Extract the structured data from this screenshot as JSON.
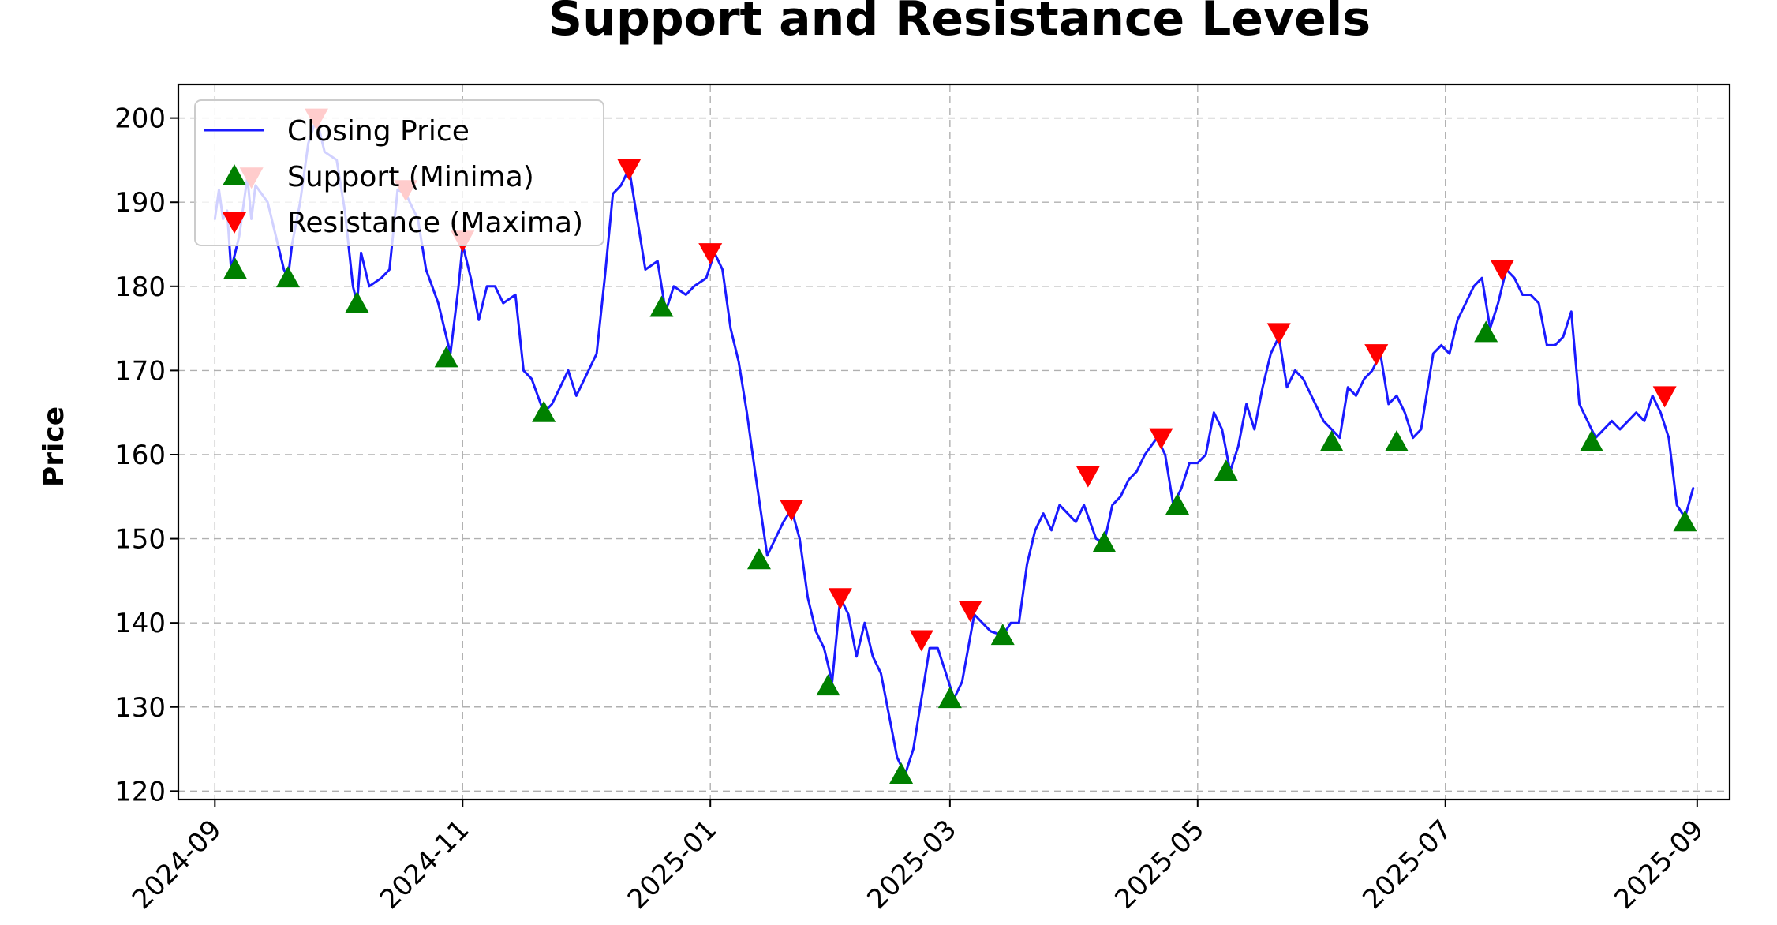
{
  "chart_data": {
    "type": "line",
    "title": "Support and Resistance Levels",
    "xlabel": "",
    "ylabel": "Price",
    "x_ticks": [
      "2024-09",
      "2024-11",
      "2025-01",
      "2025-03",
      "2025-05",
      "2025-07",
      "2025-09"
    ],
    "y_ticks": [
      120,
      130,
      140,
      150,
      160,
      170,
      180,
      190,
      200
    ],
    "xlim": [
      "2024-08-23",
      "2025-09-09"
    ],
    "ylim": [
      119,
      204
    ],
    "grid": true,
    "legend_position": "upper left",
    "colors": {
      "line": "#1a1aff",
      "support": "#008000",
      "resistance": "#ff0000"
    },
    "series": [
      {
        "name": "Closing Price",
        "kind": "line",
        "points": [
          [
            "2024-09-01",
            188
          ],
          [
            "2024-09-02",
            191.5
          ],
          [
            "2024-09-03",
            188
          ],
          [
            "2024-09-04",
            189
          ],
          [
            "2024-09-05",
            182
          ],
          [
            "2024-09-07",
            186
          ],
          [
            "2024-09-09",
            193
          ],
          [
            "2024-09-10",
            188
          ],
          [
            "2024-09-11",
            192
          ],
          [
            "2024-09-14",
            190
          ],
          [
            "2024-09-18",
            182
          ],
          [
            "2024-09-19",
            181
          ],
          [
            "2024-09-20",
            185
          ],
          [
            "2024-09-22",
            190
          ],
          [
            "2024-09-24",
            197
          ],
          [
            "2024-09-26",
            200
          ],
          [
            "2024-09-28",
            196
          ],
          [
            "2024-10-01",
            195
          ],
          [
            "2024-10-03",
            189
          ],
          [
            "2024-10-05",
            180
          ],
          [
            "2024-10-06",
            178
          ],
          [
            "2024-10-07",
            184
          ],
          [
            "2024-10-09",
            180
          ],
          [
            "2024-10-12",
            181
          ],
          [
            "2024-10-14",
            182
          ],
          [
            "2024-10-16",
            191.5
          ],
          [
            "2024-10-18",
            191
          ],
          [
            "2024-10-21",
            188
          ],
          [
            "2024-10-23",
            182
          ],
          [
            "2024-10-26",
            178
          ],
          [
            "2024-10-29",
            172
          ],
          [
            "2024-10-31",
            180
          ],
          [
            "2024-11-01",
            185
          ],
          [
            "2024-11-03",
            181
          ],
          [
            "2024-11-05",
            176
          ],
          [
            "2024-11-07",
            180
          ],
          [
            "2024-11-09",
            180
          ],
          [
            "2024-11-11",
            178
          ],
          [
            "2024-11-14",
            179
          ],
          [
            "2024-11-16",
            170
          ],
          [
            "2024-11-18",
            169
          ],
          [
            "2024-11-21",
            165
          ],
          [
            "2024-11-23",
            166
          ],
          [
            "2024-11-25",
            168
          ],
          [
            "2024-11-27",
            170
          ],
          [
            "2024-11-29",
            167
          ],
          [
            "2024-12-01",
            169
          ],
          [
            "2024-12-04",
            172
          ],
          [
            "2024-12-06",
            181
          ],
          [
            "2024-12-08",
            191
          ],
          [
            "2024-12-10",
            192
          ],
          [
            "2024-12-12",
            194
          ],
          [
            "2024-12-14",
            188
          ],
          [
            "2024-12-16",
            182
          ],
          [
            "2024-12-19",
            183
          ],
          [
            "2024-12-21",
            177
          ],
          [
            "2024-12-23",
            180
          ],
          [
            "2024-12-26",
            179
          ],
          [
            "2024-12-28",
            180
          ],
          [
            "2024-12-31",
            181
          ],
          [
            "2025-01-02",
            184
          ],
          [
            "2025-01-04",
            182
          ],
          [
            "2025-01-06",
            175
          ],
          [
            "2025-01-08",
            171
          ],
          [
            "2025-01-10",
            165
          ],
          [
            "2025-01-12",
            158
          ],
          [
            "2025-01-15",
            148
          ],
          [
            "2025-01-17",
            150
          ],
          [
            "2025-01-19",
            152
          ],
          [
            "2025-01-21",
            153.5
          ],
          [
            "2025-01-23",
            150
          ],
          [
            "2025-01-25",
            143
          ],
          [
            "2025-01-27",
            139
          ],
          [
            "2025-01-29",
            137
          ],
          [
            "2025-01-31",
            133
          ],
          [
            "2025-02-02",
            143
          ],
          [
            "2025-02-04",
            141
          ],
          [
            "2025-02-06",
            136
          ],
          [
            "2025-02-08",
            140
          ],
          [
            "2025-02-10",
            136
          ],
          [
            "2025-02-12",
            134
          ],
          [
            "2025-02-14",
            129
          ],
          [
            "2025-02-16",
            124
          ],
          [
            "2025-02-18",
            122
          ],
          [
            "2025-02-20",
            125
          ],
          [
            "2025-02-22",
            131
          ],
          [
            "2025-02-24",
            137
          ],
          [
            "2025-02-26",
            137
          ],
          [
            "2025-02-28",
            134
          ],
          [
            "2025-03-02",
            131
          ],
          [
            "2025-03-04",
            133
          ],
          [
            "2025-03-07",
            141
          ],
          [
            "2025-03-09",
            140
          ],
          [
            "2025-03-11",
            139
          ],
          [
            "2025-03-14",
            138.5
          ],
          [
            "2025-03-16",
            140
          ],
          [
            "2025-03-18",
            140
          ],
          [
            "2025-03-20",
            147
          ],
          [
            "2025-03-22",
            151
          ],
          [
            "2025-03-24",
            153
          ],
          [
            "2025-03-26",
            151
          ],
          [
            "2025-03-28",
            154
          ],
          [
            "2025-03-30",
            153
          ],
          [
            "2025-04-01",
            152
          ],
          [
            "2025-04-03",
            154
          ],
          [
            "2025-04-06",
            150
          ],
          [
            "2025-04-08",
            149.5
          ],
          [
            "2025-04-10",
            154
          ],
          [
            "2025-04-12",
            155
          ],
          [
            "2025-04-14",
            157
          ],
          [
            "2025-04-16",
            158
          ],
          [
            "2025-04-18",
            160
          ],
          [
            "2025-04-21",
            162
          ],
          [
            "2025-04-23",
            160
          ],
          [
            "2025-04-25",
            154
          ],
          [
            "2025-04-27",
            156
          ],
          [
            "2025-04-29",
            159
          ],
          [
            "2025-05-01",
            159
          ],
          [
            "2025-05-03",
            160
          ],
          [
            "2025-05-05",
            165
          ],
          [
            "2025-05-07",
            163
          ],
          [
            "2025-05-09",
            158
          ],
          [
            "2025-05-11",
            161
          ],
          [
            "2025-05-13",
            166
          ],
          [
            "2025-05-15",
            163
          ],
          [
            "2025-05-17",
            168
          ],
          [
            "2025-05-19",
            172
          ],
          [
            "2025-05-21",
            174
          ],
          [
            "2025-05-23",
            168
          ],
          [
            "2025-05-25",
            170
          ],
          [
            "2025-05-27",
            169
          ],
          [
            "2025-05-29",
            167
          ],
          [
            "2025-06-01",
            164
          ],
          [
            "2025-06-03",
            163
          ],
          [
            "2025-06-05",
            162
          ],
          [
            "2025-06-07",
            168
          ],
          [
            "2025-06-09",
            167
          ],
          [
            "2025-06-11",
            169
          ],
          [
            "2025-06-13",
            170
          ],
          [
            "2025-06-15",
            172
          ],
          [
            "2025-06-17",
            166
          ],
          [
            "2025-06-19",
            167
          ],
          [
            "2025-06-21",
            165
          ],
          [
            "2025-06-23",
            162
          ],
          [
            "2025-06-25",
            163
          ],
          [
            "2025-06-28",
            172
          ],
          [
            "2025-06-30",
            173
          ],
          [
            "2025-07-02",
            172
          ],
          [
            "2025-07-04",
            176
          ],
          [
            "2025-07-06",
            178
          ],
          [
            "2025-07-08",
            180
          ],
          [
            "2025-07-10",
            181
          ],
          [
            "2025-07-12",
            175
          ],
          [
            "2025-07-14",
            178
          ],
          [
            "2025-07-16",
            182
          ],
          [
            "2025-07-18",
            181
          ],
          [
            "2025-07-20",
            179
          ],
          [
            "2025-07-22",
            179
          ],
          [
            "2025-07-24",
            178
          ],
          [
            "2025-07-26",
            173
          ],
          [
            "2025-07-28",
            173
          ],
          [
            "2025-07-30",
            174
          ],
          [
            "2025-08-01",
            177
          ],
          [
            "2025-08-03",
            166
          ],
          [
            "2025-08-05",
            164
          ],
          [
            "2025-08-07",
            162
          ],
          [
            "2025-08-09",
            163
          ],
          [
            "2025-08-11",
            164
          ],
          [
            "2025-08-13",
            163
          ],
          [
            "2025-08-15",
            164
          ],
          [
            "2025-08-17",
            165
          ],
          [
            "2025-08-19",
            164
          ],
          [
            "2025-08-21",
            167
          ],
          [
            "2025-08-23",
            165
          ],
          [
            "2025-08-25",
            162
          ],
          [
            "2025-08-27",
            154
          ],
          [
            "2025-08-29",
            152.5
          ],
          [
            "2025-08-31",
            156
          ]
        ]
      },
      {
        "name": "Support (Minima)",
        "kind": "marker_up",
        "points": [
          [
            "2024-09-06",
            182
          ],
          [
            "2024-09-19",
            181
          ],
          [
            "2024-10-06",
            178
          ],
          [
            "2024-10-28",
            171.5
          ],
          [
            "2024-11-21",
            165
          ],
          [
            "2024-12-20",
            177.5
          ],
          [
            "2025-01-13",
            147.5
          ],
          [
            "2025-01-30",
            132.5
          ],
          [
            "2025-02-17",
            122
          ],
          [
            "2025-02-29",
            131
          ],
          [
            "2025-03-14",
            138.5
          ],
          [
            "2025-04-08",
            149.5
          ],
          [
            "2025-04-26",
            154
          ],
          [
            "2025-05-08",
            158
          ],
          [
            "2025-06-03",
            161.5
          ],
          [
            "2025-06-19",
            161.5
          ],
          [
            "2025-07-11",
            174.5
          ],
          [
            "2025-08-06",
            161.5
          ],
          [
            "2025-08-29",
            152
          ]
        ]
      },
      {
        "name": "Resistance (Maxima)",
        "kind": "marker_down",
        "points": [
          [
            "2024-09-10",
            193
          ],
          [
            "2024-09-26",
            200
          ],
          [
            "2024-10-18",
            191.5
          ],
          [
            "2024-11-01",
            185.5
          ],
          [
            "2024-12-12",
            194
          ],
          [
            "2025-01-01",
            184
          ],
          [
            "2025-01-21",
            153.5
          ],
          [
            "2025-02-02",
            143
          ],
          [
            "2025-02-22",
            138
          ],
          [
            "2025-03-06",
            141.5
          ],
          [
            "2025-04-04",
            157.5
          ],
          [
            "2025-04-22",
            162
          ],
          [
            "2025-05-21",
            174.5
          ],
          [
            "2025-06-14",
            172
          ],
          [
            "2025-07-15",
            182
          ],
          [
            "2025-08-24",
            167
          ]
        ]
      }
    ]
  }
}
